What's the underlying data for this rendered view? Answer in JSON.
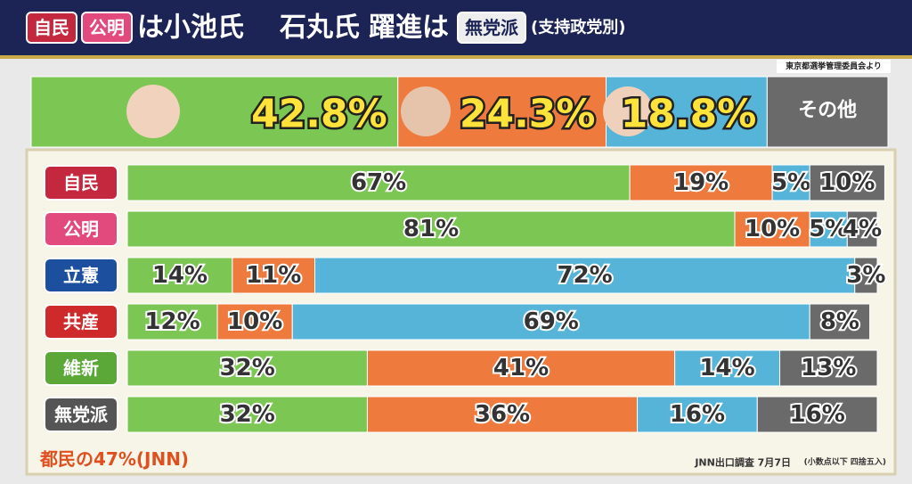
{
  "header": {
    "parts": [
      "自民",
      "公明",
      "は小池氏",
      "石丸氏",
      "躍進は",
      "無党派",
      "(支持政党別)"
    ],
    "source": "東京都選挙管理委員会より"
  },
  "overall": {
    "segments": [
      {
        "value": 42.8,
        "label": "42.8%",
        "color": "#7cc653"
      },
      {
        "value": 24.3,
        "label": "24.3%",
        "color": "#ef7a3e"
      },
      {
        "value": 18.8,
        "label": "18.8%",
        "color": "#56b4d8"
      },
      {
        "value": 14.1,
        "name": "その他",
        "color": "#6a6a6a"
      }
    ]
  },
  "chart_data": {
    "type": "bar",
    "orientation": "horizontal",
    "stacked": true,
    "xlim": [
      0,
      100
    ],
    "categories": [
      "自民",
      "公明",
      "立憲",
      "共産",
      "維新",
      "無党派"
    ],
    "category_colors": [
      "#c4283e",
      "#e24a7e",
      "#1d4f9f",
      "#cf2a2b",
      "#5ba737",
      "#555555"
    ],
    "series": [
      {
        "color": "#7cc653",
        "values": [
          67,
          81,
          14,
          12,
          32,
          32
        ],
        "value_labels": [
          "67%",
          "81%",
          "14%",
          "12%",
          "32%",
          "32%"
        ]
      },
      {
        "color": "#ef7a3e",
        "values": [
          19,
          10,
          11,
          10,
          41,
          36
        ],
        "value_labels": [
          "19%",
          "10%",
          "11%",
          "10%",
          "41%",
          "36%"
        ]
      },
      {
        "color": "#56b4d8",
        "values": [
          5,
          5,
          72,
          69,
          14,
          16
        ],
        "value_labels": [
          "5%",
          "5%",
          "72%",
          "69%",
          "14%",
          "16%"
        ]
      },
      {
        "color": "#6a6a6a",
        "values": [
          10,
          4,
          3,
          8,
          13,
          16
        ],
        "value_labels": [
          "10%",
          "4%",
          "3%",
          "8%",
          "13%",
          "16%"
        ]
      }
    ]
  },
  "footer": {
    "note": "都民の47%(JNN)",
    "survey": "JNN出口調査 7月7日",
    "rounding": "(小数点以下 四捨五入)"
  }
}
